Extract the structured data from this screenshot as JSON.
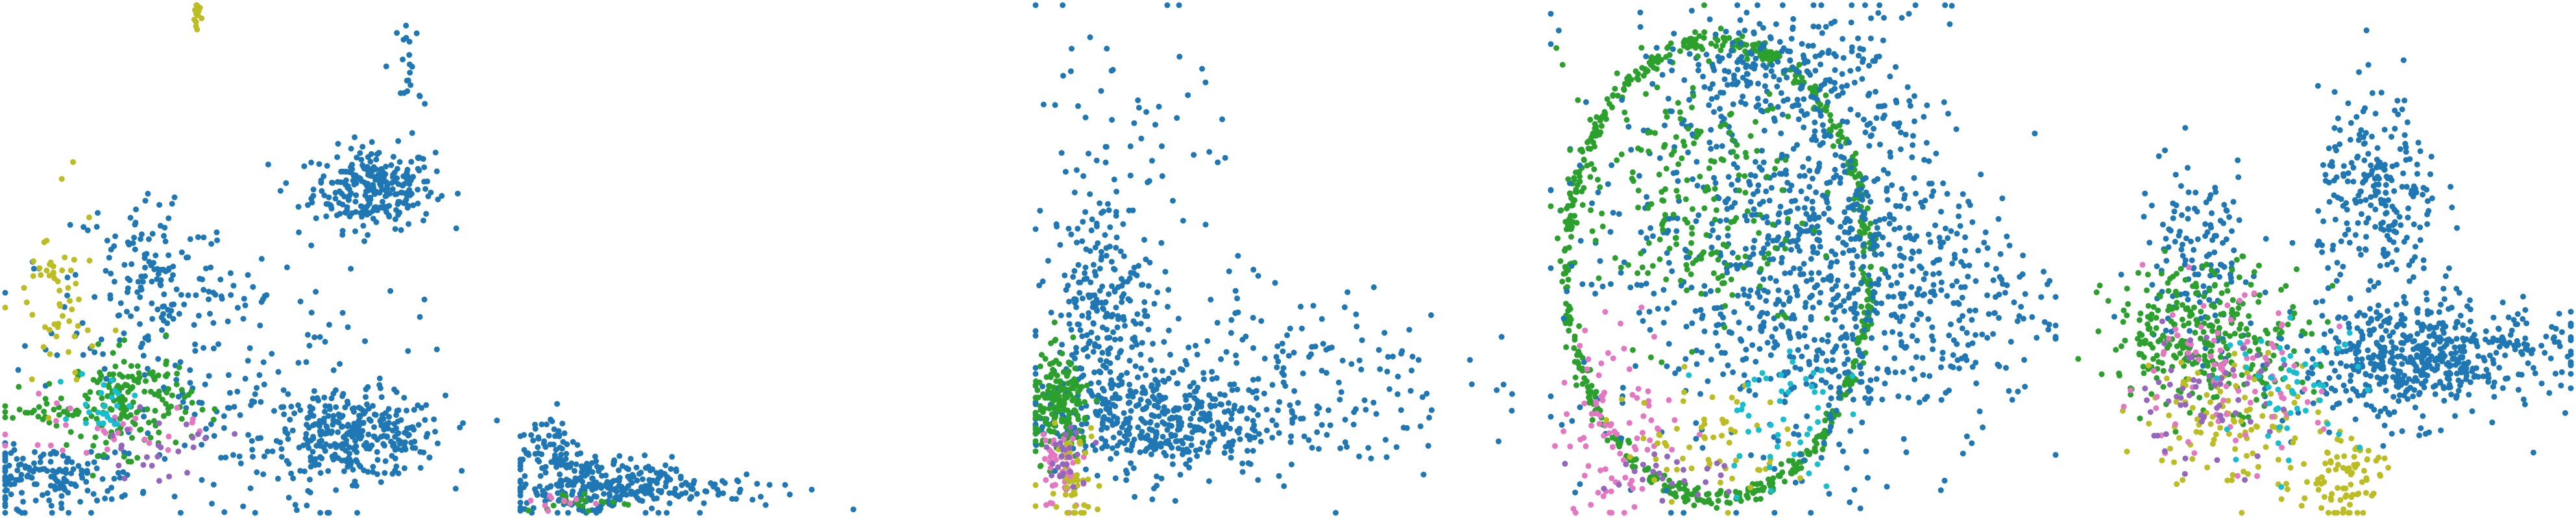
{
  "chart_data": [
    {
      "type": "scatter",
      "title": "",
      "xlabel": "",
      "ylabel": "",
      "axes_visible": false,
      "grid": false,
      "legend": "none",
      "palette": {
        "blue": "#1f77b4",
        "green": "#2ca02c",
        "olive": "#bcbd22",
        "pink": "#e377c2",
        "purple": "#9467bd",
        "cyan": "#17becf"
      },
      "xlim": [
        0,
        100
      ],
      "ylim": [
        0,
        100
      ],
      "series": [
        {
          "color": "#1f77b4",
          "clusters": [
            {
              "cx": 73,
              "cy": 64,
              "sx": 6,
              "sy": 4,
              "n": 260
            },
            {
              "cx": 69,
              "cy": 15,
              "sx": 9,
              "sy": 4,
              "n": 320
            },
            {
              "cx": 29,
              "cy": 46,
              "sx": 8,
              "sy": 9,
              "n": 130
            },
            {
              "cx": 43,
              "cy": 26,
              "sx": 18,
              "sy": 16,
              "n": 200
            },
            {
              "cx": 8,
              "cy": 7,
              "sx": 9,
              "sy": 3,
              "n": 160
            },
            {
              "cx": 80,
              "cy": 87,
              "sx": 1.2,
              "sy": 6,
              "n": 22
            }
          ]
        },
        {
          "color": "#2ca02c",
          "clusters": [
            {
              "cx": 25,
              "cy": 22,
              "sx": 6,
              "sy": 5,
              "n": 150
            },
            {
              "cx": 12,
              "cy": 20,
              "sx": 8,
              "sy": 2,
              "n": 40
            }
          ]
        },
        {
          "color": "#bcbd22",
          "clusters": [
            {
              "cx": 10,
              "cy": 40,
              "sx": 4,
              "sy": 10,
              "n": 55
            },
            {
              "cx": 38,
              "cy": 98,
              "sx": 0.4,
              "sy": 3,
              "n": 14
            }
          ]
        },
        {
          "color": "#e377c2",
          "clusters": [
            {
              "cx": 20,
              "cy": 16,
              "sx": 9,
              "sy": 3,
              "n": 30
            }
          ]
        },
        {
          "color": "#9467bd",
          "clusters": [
            {
              "cx": 30,
              "cy": 13,
              "sx": 7,
              "sy": 3,
              "n": 25
            }
          ]
        },
        {
          "color": "#17becf",
          "clusters": [
            {
              "cx": 20,
              "cy": 22,
              "sx": 3,
              "sy": 3,
              "n": 25
            }
          ]
        }
      ]
    },
    {
      "type": "scatter",
      "title": "",
      "xlabel": "",
      "ylabel": "",
      "axes_visible": false,
      "grid": false,
      "legend": "none",
      "xlim": [
        0,
        100
      ],
      "ylim": [
        0,
        100
      ],
      "series": [
        {
          "color": "#1f77b4",
          "clusters": [
            {
              "cx": 14,
              "cy": 5,
              "sx": 8,
              "sy": 3,
              "n": 220
            },
            {
              "cx": 6,
              "cy": 13,
              "sx": 3,
              "sy": 4,
              "n": 70
            },
            {
              "cx": 32,
              "cy": 5,
              "sx": 12,
              "sy": 2,
              "n": 90
            }
          ]
        },
        {
          "color": "#2ca02c",
          "clusters": [
            {
              "cx": 12,
              "cy": 2,
              "sx": 6,
              "sy": 1,
              "n": 20
            }
          ]
        },
        {
          "color": "#e377c2",
          "clusters": [
            {
              "cx": 8,
              "cy": 2,
              "sx": 4,
              "sy": 1,
              "n": 10
            }
          ]
        }
      ]
    },
    {
      "type": "scatter",
      "title": "",
      "xlabel": "",
      "ylabel": "",
      "axes_visible": false,
      "grid": false,
      "legend": "none",
      "xlim": [
        0,
        100
      ],
      "ylim": [
        0,
        100
      ],
      "series": [
        {
          "color": "#1f77b4",
          "clusters": [
            {
              "cx": 13,
              "cy": 41,
              "sx": 5,
              "sy": 12,
              "n": 240
            },
            {
              "cx": 22,
              "cy": 18,
              "sx": 12,
              "sy": 5,
              "n": 380
            },
            {
              "cx": 48,
              "cy": 26,
              "sx": 18,
              "sy": 10,
              "n": 220
            },
            {
              "cx": 20,
              "cy": 70,
              "sx": 10,
              "sy": 16,
              "n": 60
            }
          ]
        },
        {
          "color": "#2ca02c",
          "clusters": [
            {
              "cx": 5,
              "cy": 21,
              "sx": 3,
              "sy": 5,
              "n": 170
            }
          ]
        },
        {
          "color": "#e377c2",
          "clusters": [
            {
              "cx": 5,
              "cy": 9,
              "sx": 2,
              "sy": 5,
              "n": 45
            }
          ]
        },
        {
          "color": "#bcbd22",
          "clusters": [
            {
              "cx": 7,
              "cy": 7,
              "sx": 3,
              "sy": 5,
              "n": 45
            }
          ]
        },
        {
          "color": "#9467bd",
          "clusters": [
            {
              "cx": 6,
              "cy": 12,
              "sx": 2,
              "sy": 3,
              "n": 25
            }
          ]
        }
      ]
    },
    {
      "type": "scatter",
      "title": "",
      "xlabel": "",
      "ylabel": "",
      "axes_visible": false,
      "grid": false,
      "legend": "none",
      "xlim": [
        0,
        100
      ],
      "ylim": [
        0,
        100
      ],
      "ring": {
        "cx": 33,
        "cy": 48,
        "rx": 30,
        "ry": 45,
        "color": "#2ca02c",
        "n": 650
      },
      "series": [
        {
          "color": "#1f77b4",
          "clusters": [
            {
              "cx": 55,
              "cy": 52,
              "sx": 12,
              "sy": 22,
              "n": 700
            },
            {
              "cx": 32,
              "cy": 52,
              "sx": 16,
              "sy": 22,
              "n": 260
            },
            {
              "cx": 42,
              "cy": 88,
              "sx": 10,
              "sy": 5,
              "n": 150
            },
            {
              "cx": 80,
              "cy": 42,
              "sx": 10,
              "sy": 12,
              "n": 180
            }
          ]
        },
        {
          "color": "#2ca02c",
          "clusters": [
            {
              "cx": 26,
              "cy": 62,
              "sx": 12,
              "sy": 14,
              "n": 220
            }
          ]
        },
        {
          "color": "#e377c2",
          "clusters": [
            {
              "cx": 14,
              "cy": 18,
              "sx": 6,
              "sy": 10,
              "n": 90
            }
          ]
        },
        {
          "color": "#bcbd22",
          "clusters": [
            {
              "cx": 30,
              "cy": 14,
              "sx": 8,
              "sy": 6,
              "n": 60
            }
          ]
        },
        {
          "color": "#17becf",
          "clusters": [
            {
              "cx": 45,
              "cy": 20,
              "sx": 6,
              "sy": 8,
              "n": 45
            }
          ]
        },
        {
          "color": "#9467bd",
          "clusters": [
            {
              "cx": 22,
              "cy": 8,
              "sx": 8,
              "sy": 3,
              "n": 25
            }
          ]
        }
      ]
    },
    {
      "type": "scatter",
      "title": "",
      "xlabel": "",
      "ylabel": "",
      "axes_visible": false,
      "grid": false,
      "legend": "none",
      "xlim": [
        0,
        100
      ],
      "ylim": [
        0,
        100
      ],
      "series": [
        {
          "color": "#1f77b4",
          "clusters": [
            {
              "cx": 62,
              "cy": 62,
              "sx": 6,
              "sy": 10,
              "n": 240
            },
            {
              "cx": 26,
              "cy": 50,
              "sx": 6,
              "sy": 10,
              "n": 140
            },
            {
              "cx": 67,
              "cy": 30,
              "sx": 10,
              "sy": 6,
              "n": 440
            },
            {
              "cx": 85,
              "cy": 32,
              "sx": 10,
              "sy": 4,
              "n": 130
            }
          ]
        },
        {
          "color": "#2ca02c",
          "clusters": [
            {
              "cx": 28,
              "cy": 35,
              "sx": 10,
              "sy": 7,
              "n": 300
            }
          ]
        },
        {
          "color": "#bcbd22",
          "clusters": [
            {
              "cx": 33,
              "cy": 18,
              "sx": 9,
              "sy": 7,
              "n": 110
            },
            {
              "cx": 55,
              "cy": 7,
              "sx": 4,
              "sy": 5,
              "n": 80
            }
          ]
        },
        {
          "color": "#e377c2",
          "clusters": [
            {
              "cx": 30,
              "cy": 26,
              "sx": 10,
              "sy": 8,
              "n": 90
            }
          ]
        },
        {
          "color": "#9467bd",
          "clusters": [
            {
              "cx": 27,
              "cy": 22,
              "sx": 8,
              "sy": 6,
              "n": 60
            }
          ]
        },
        {
          "color": "#17becf",
          "clusters": [
            {
              "cx": 45,
              "cy": 25,
              "sx": 7,
              "sy": 6,
              "n": 50
            }
          ]
        }
      ]
    }
  ]
}
